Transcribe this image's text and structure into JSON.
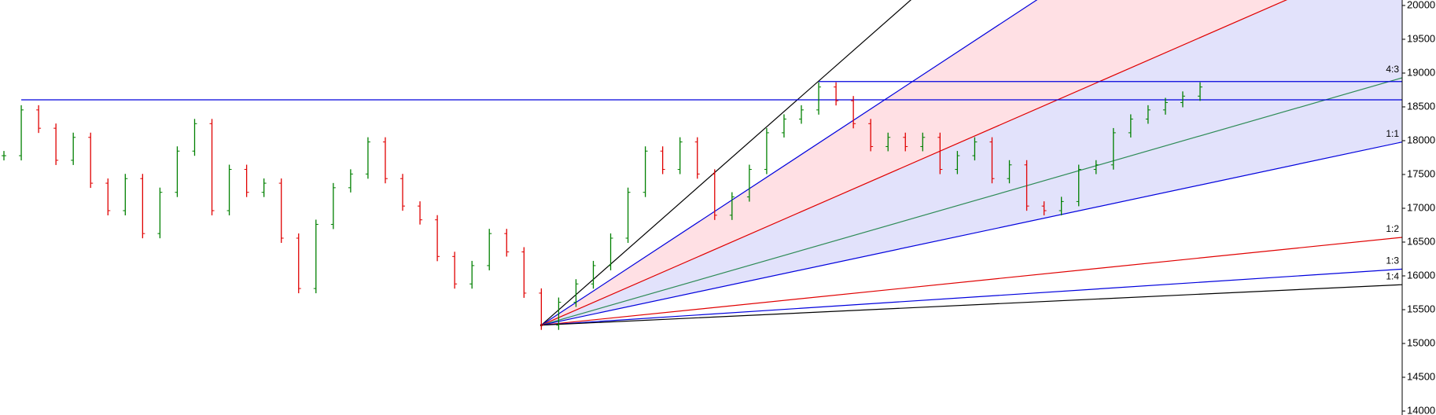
{
  "chart_data": {
    "type": "bar-chart",
    "values": [
      17778,
      18455,
      18184,
      17710,
      18049,
      17371,
      16965,
      17439,
      16626,
      17236,
      17846,
      18252,
      16965,
      17575,
      17236,
      17371,
      16558,
      15813,
      16762,
      17304,
      17507,
      17981,
      17439,
      17033,
      16829,
      16287,
      15881,
      16152,
      16626,
      16355,
      15745,
      15271,
      15610,
      15881,
      16152,
      16558,
      17236,
      17846,
      17575,
      17981,
      17507,
      16897,
      17168,
      17575,
      18117,
      18320,
      18455,
      18794,
      18591,
      18252,
      17913,
      18049,
      17913,
      18049,
      17575,
      17778,
      17981,
      17439,
      17642,
      17033,
      16965,
      17100,
      17575,
      17642,
      18117,
      18320,
      18455,
      18564,
      18659,
      18794
    ],
    "up_color": "#008000",
    "down_color": "#e00000",
    "ylim": [
      13942,
      20081
    ],
    "yticks": [
      14000,
      14500,
      15000,
      15500,
      16000,
      16500,
      17000,
      17500,
      18000,
      18500,
      19000,
      19500,
      20000
    ],
    "fan": {
      "origin_index": 31,
      "origin_price": 15271,
      "lines": [
        {
          "end_price": 26480,
          "color": "#000000"
        },
        {
          "end_price": 23630,
          "color": "#0000dd"
        },
        {
          "end_price": 20830,
          "color": "#e00000"
        },
        {
          "end_price": 18930,
          "color": "#2e8b57",
          "label": "4:3"
        },
        {
          "end_price": 17980,
          "color": "#0000dd",
          "label": "1:1"
        },
        {
          "end_price": 16570,
          "color": "#e00000",
          "label": "1:2"
        },
        {
          "end_price": 16100,
          "color": "#0000dd",
          "label": "1:3"
        },
        {
          "end_price": 15870,
          "color": "#000000",
          "label": "1:4"
        }
      ],
      "fills": [
        {
          "from": 1,
          "to": 2,
          "color": "#ffe0e4"
        },
        {
          "from": 2,
          "to": 4,
          "color": "#e2e2fb"
        }
      ]
    },
    "levels": [
      {
        "price": 18604,
        "from_index": 1,
        "color": "#0000dd"
      },
      {
        "price": 18875,
        "from_index": 47,
        "color": "#0000dd"
      }
    ]
  }
}
